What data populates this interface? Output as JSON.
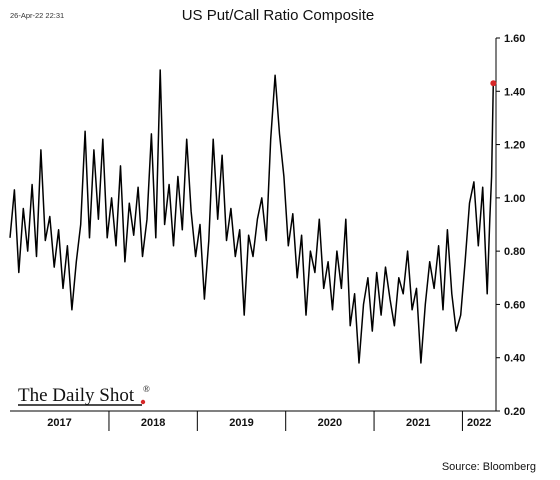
{
  "header": {
    "timestamp": "26-Apr-22 22:31",
    "title": "US Put/Call Ratio Composite"
  },
  "footer": {
    "source": "Source: Bloomberg",
    "brand": "The Daily Shot",
    "brand_mark": "®"
  },
  "colors": {
    "line": "#000000",
    "last_point": "#d62728",
    "axis": "#000000"
  },
  "chart_data": {
    "type": "line",
    "title": "US Put/Call Ratio Composite",
    "xlabel": "",
    "ylabel": "",
    "ylim": [
      0.2,
      1.6
    ],
    "yticks": [
      "1.60",
      "1.40",
      "1.20",
      "1.00",
      "0.80",
      "0.60",
      "0.40",
      "0.20"
    ],
    "ytick_values": [
      1.6,
      1.4,
      1.2,
      1.0,
      0.8,
      0.6,
      0.4,
      0.2
    ],
    "xlim": [
      2016.88,
      2022.38
    ],
    "year_labels": [
      {
        "label": "2017",
        "start": 2016.88,
        "end": 2018.0
      },
      {
        "label": "2018",
        "start": 2018.0,
        "end": 2019.0
      },
      {
        "label": "2019",
        "start": 2019.0,
        "end": 2020.0
      },
      {
        "label": "2020",
        "start": 2020.0,
        "end": 2021.0
      },
      {
        "label": "2021",
        "start": 2021.0,
        "end": 2022.0
      },
      {
        "label": "2022",
        "start": 2022.0,
        "end": 2022.38
      }
    ],
    "grid": false,
    "legend": "none",
    "series": [
      {
        "x": [
          2016.88,
          2016.93,
          2016.98,
          2017.03,
          2017.08,
          2017.13,
          2017.18,
          2017.23,
          2017.28,
          2017.33,
          2017.38,
          2017.43,
          2017.48,
          2017.53,
          2017.58,
          2017.63,
          2017.68,
          2017.73,
          2017.78,
          2017.83,
          2017.88,
          2017.93,
          2017.98,
          2018.03,
          2018.08,
          2018.13,
          2018.18,
          2018.23,
          2018.28,
          2018.33,
          2018.38,
          2018.43,
          2018.48,
          2018.53,
          2018.58,
          2018.63,
          2018.68,
          2018.73,
          2018.78,
          2018.83,
          2018.88,
          2018.93,
          2018.98,
          2019.03,
          2019.08,
          2019.13,
          2019.18,
          2019.23,
          2019.28,
          2019.33,
          2019.38,
          2019.43,
          2019.48,
          2019.53,
          2019.58,
          2019.63,
          2019.68,
          2019.73,
          2019.78,
          2019.83,
          2019.88,
          2019.93,
          2019.98,
          2020.03,
          2020.08,
          2020.13,
          2020.18,
          2020.23,
          2020.28,
          2020.33,
          2020.38,
          2020.43,
          2020.48,
          2020.53,
          2020.58,
          2020.63,
          2020.68,
          2020.73,
          2020.78,
          2020.83,
          2020.88,
          2020.93,
          2020.98,
          2021.03,
          2021.08,
          2021.13,
          2021.18,
          2021.23,
          2021.28,
          2021.33,
          2021.38,
          2021.43,
          2021.48,
          2021.53,
          2021.58,
          2021.63,
          2021.68,
          2021.73,
          2021.78,
          2021.83,
          2021.88,
          2021.93,
          2021.98,
          2022.03,
          2022.08,
          2022.13,
          2022.18,
          2022.23,
          2022.28,
          2022.31,
          2022.33,
          2022.35
        ],
        "y": [
          0.85,
          1.03,
          0.72,
          0.96,
          0.8,
          1.05,
          0.78,
          1.18,
          0.84,
          0.93,
          0.74,
          0.88,
          0.66,
          0.82,
          0.58,
          0.76,
          0.9,
          1.25,
          0.85,
          1.18,
          0.92,
          1.22,
          0.85,
          1.0,
          0.82,
          1.12,
          0.76,
          0.98,
          0.86,
          1.04,
          0.78,
          0.92,
          1.24,
          0.85,
          1.48,
          0.9,
          1.05,
          0.82,
          1.08,
          0.88,
          1.22,
          0.95,
          0.78,
          0.9,
          0.62,
          0.84,
          1.22,
          0.92,
          1.16,
          0.84,
          0.96,
          0.78,
          0.88,
          0.56,
          0.86,
          0.78,
          0.92,
          1.0,
          0.84,
          1.22,
          1.46,
          1.24,
          1.08,
          0.82,
          0.94,
          0.7,
          0.86,
          0.56,
          0.8,
          0.72,
          0.92,
          0.66,
          0.76,
          0.58,
          0.8,
          0.66,
          0.92,
          0.52,
          0.64,
          0.38,
          0.6,
          0.7,
          0.5,
          0.72,
          0.56,
          0.74,
          0.62,
          0.52,
          0.7,
          0.64,
          0.8,
          0.58,
          0.66,
          0.38,
          0.6,
          0.76,
          0.66,
          0.82,
          0.58,
          0.88,
          0.64,
          0.5,
          0.56,
          0.76,
          0.98,
          1.06,
          0.82,
          1.04,
          0.64,
          0.92,
          1.08,
          1.43
        ]
      }
    ]
  }
}
